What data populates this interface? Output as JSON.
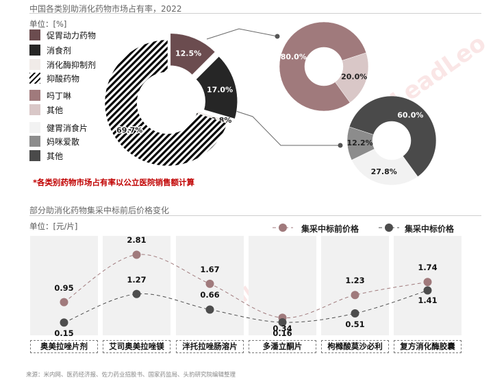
{
  "top_section": {
    "title": "中国各类别助消化药物市场占有率，2022",
    "unit": "单位：[%]",
    "note": "*各类别药物市场占有率以公立医院销售额计算",
    "legend_main": [
      {
        "label": "促胃动力药物",
        "color": "#6b4c4f"
      },
      {
        "label": "消食剂",
        "color": "#262626"
      },
      {
        "label": "消化酶抑制剂",
        "color": "#f0ebe8"
      },
      {
        "label": "抑酸药物",
        "color": "hatch"
      }
    ],
    "legend_sub1": [
      {
        "label": "吗丁啉",
        "color": "#a07a7c"
      },
      {
        "label": "其他",
        "color": "#d9c7c7"
      }
    ],
    "legend_sub2": [
      {
        "label": "健胃消食片",
        "color": "#f2f2f2"
      },
      {
        "label": "妈咪爱散",
        "color": "#8c8c8c"
      },
      {
        "label": "其他",
        "color": "#4a4a4a"
      }
    ]
  },
  "bottom_section": {
    "title": "部分助消化药物集采中标前后价格变化",
    "unit": "单位：[元/片]",
    "series_labels": [
      "集采中标前价格",
      "集采中标价格"
    ]
  },
  "source": "来源：米内网、医药经济报、佐力药业招股书、国家药监局、头豹研究院编辑整理",
  "watermark": "LeadLeo",
  "chart_data": [
    {
      "type": "pie",
      "donut": true,
      "title": "中国各类别助消化药物市场占有率，2022",
      "unit": "%",
      "slices": [
        {
          "label": "促胃动力药物",
          "value": 12.5,
          "display": "12.5%",
          "color": "#6b4c4f"
        },
        {
          "label": "消食剂",
          "value": 17.0,
          "display": "17.0%",
          "color": "#262626"
        },
        {
          "label": "消化酶抑制剂",
          "value": 0.8,
          "display": "0.8%",
          "color": "#f0ebe8"
        },
        {
          "label": "抑酸药物",
          "value": 69.7,
          "display": "69.7%",
          "color": "hatch"
        }
      ]
    },
    {
      "type": "pie",
      "donut": true,
      "breakdown_of": "促胃动力药物",
      "slices": [
        {
          "label": "吗丁啉",
          "value": 80.0,
          "display": "80.0%",
          "color": "#a07a7c"
        },
        {
          "label": "其他",
          "value": 20.0,
          "display": "20.0%",
          "color": "#d9c7c7"
        }
      ]
    },
    {
      "type": "pie",
      "donut": true,
      "breakdown_of": "消食剂",
      "slices": [
        {
          "label": "健胃消食片",
          "value": 27.8,
          "display": "27.8%",
          "color": "#f2f2f2"
        },
        {
          "label": "妈咪爱散",
          "value": 12.2,
          "display": "12.2%",
          "color": "#8c8c8c"
        },
        {
          "label": "其他",
          "value": 60.0,
          "display": "60.0%",
          "color": "#4a4a4a"
        }
      ]
    },
    {
      "type": "line",
      "title": "部分助消化药物集采中标前后价格变化",
      "ylabel": "单位：[元/片]",
      "categories": [
        "奥美拉唑片剂",
        "艾司奥美拉唑镁",
        "泮托拉唑肠溶片",
        "多潘立酮片",
        "枸橼酸莫沙必利",
        "复方消化酶胶囊"
      ],
      "series": [
        {
          "name": "集采中标前价格",
          "values": [
            0.95,
            2.81,
            1.67,
            0.34,
            1.23,
            1.74
          ],
          "labels": [
            "0.95",
            "2.81",
            "1.67",
            "0.34",
            "1.23",
            "1.74"
          ],
          "color": "#a07a7c"
        },
        {
          "name": "集采中标价格",
          "values": [
            0.15,
            1.27,
            0.66,
            0.16,
            0.51,
            1.41
          ],
          "labels": [
            "0.15",
            "1.27",
            "0.66",
            "0.16",
            "0.51",
            "1.41"
          ],
          "color": "#4d4d4d"
        }
      ],
      "ylim": [
        0,
        3.2
      ],
      "smooth": true,
      "grid": false,
      "legend": "top-right"
    }
  ]
}
